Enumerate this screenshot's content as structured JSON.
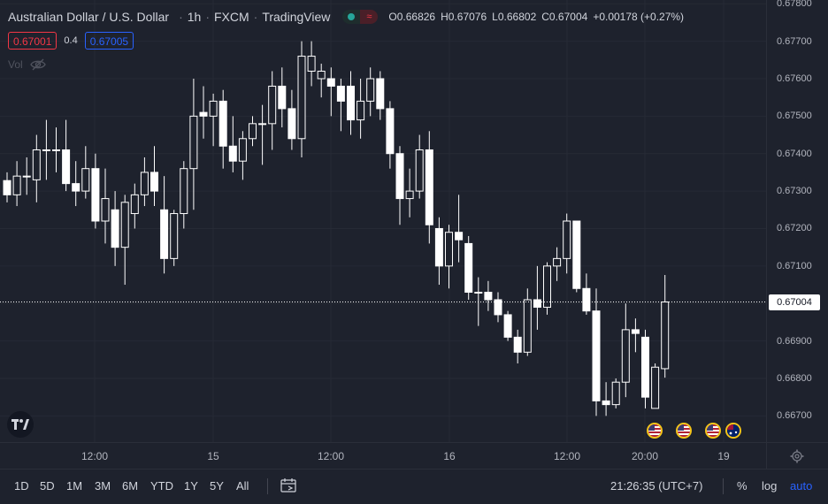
{
  "header": {
    "symbol": "Australian Dollar / U.S. Dollar",
    "interval": "1h",
    "exchange": "FXCM",
    "source": "TradingView",
    "ohlc": {
      "o_label": "O",
      "o": "0.66826",
      "h_label": "H",
      "h": "0.67076",
      "l_label": "L",
      "l": "0.66802",
      "c_label": "C",
      "c": "0.67004",
      "change": "+0.00178 (+0.27%)"
    },
    "status_icon": "market-status-icon"
  },
  "trade": {
    "sell": "0.67001",
    "spread": "0.4",
    "buy": "0.67005"
  },
  "volume": {
    "label": "Vol",
    "icon": "eye-hidden-icon"
  },
  "price_axis": {
    "ticks": [
      "0.67800",
      "0.67700",
      "0.67600",
      "0.67500",
      "0.67400",
      "0.67300",
      "0.67200",
      "0.67100",
      "0.67000",
      "0.66900",
      "0.66800",
      "0.66700"
    ],
    "last_price": "0.67004"
  },
  "time_axis": {
    "ticks": [
      "12:00",
      "15",
      "12:00",
      "16",
      "12:00",
      "20:00",
      "19"
    ]
  },
  "events": [
    "us-flag-icon",
    "us-flag-icon",
    "us-flag-icon",
    "au-flag-icon"
  ],
  "bottom_bar": {
    "ranges": [
      "1D",
      "5D",
      "1M",
      "3M",
      "6M",
      "YTD",
      "1Y",
      "5Y",
      "All"
    ],
    "clock": "21:26:35 (UTC+7)",
    "percent": "%",
    "log": "log",
    "auto": "auto"
  },
  "colors": {
    "background": "#1e222d",
    "candle": "#ffffff",
    "sell": "#f23645",
    "buy": "#2962ff",
    "status_green": "#26a69a"
  },
  "chart_data": {
    "type": "candlestick",
    "symbol": "AUDUSD",
    "interval": "1h",
    "ylim": [
      0.6663,
      0.6781
    ],
    "price_ticks": [
      0.678,
      0.677,
      0.676,
      0.675,
      0.674,
      0.673,
      0.672,
      0.671,
      0.67,
      0.669,
      0.668,
      0.667
    ],
    "last_price": 0.67004,
    "candles": [
      {
        "o": 0.67328,
        "h": 0.6735,
        "l": 0.6727,
        "c": 0.6729
      },
      {
        "o": 0.6729,
        "h": 0.6738,
        "l": 0.6726,
        "c": 0.6734
      },
      {
        "o": 0.6734,
        "h": 0.6739,
        "l": 0.6729,
        "c": 0.6734
      },
      {
        "o": 0.6733,
        "h": 0.6745,
        "l": 0.6727,
        "c": 0.6741
      },
      {
        "o": 0.6741,
        "h": 0.6749,
        "l": 0.6733,
        "c": 0.6741
      },
      {
        "o": 0.6741,
        "h": 0.6747,
        "l": 0.6735,
        "c": 0.6741
      },
      {
        "o": 0.6741,
        "h": 0.6749,
        "l": 0.673,
        "c": 0.6732
      },
      {
        "o": 0.6732,
        "h": 0.6738,
        "l": 0.6726,
        "c": 0.673
      },
      {
        "o": 0.673,
        "h": 0.6742,
        "l": 0.6728,
        "c": 0.6736
      },
      {
        "o": 0.6736,
        "h": 0.674,
        "l": 0.672,
        "c": 0.6722
      },
      {
        "o": 0.6722,
        "h": 0.6736,
        "l": 0.6716,
        "c": 0.6728
      },
      {
        "o": 0.6725,
        "h": 0.673,
        "l": 0.671,
        "c": 0.6715
      },
      {
        "o": 0.6715,
        "h": 0.6729,
        "l": 0.6705,
        "c": 0.6727
      },
      {
        "o": 0.6724,
        "h": 0.6732,
        "l": 0.672,
        "c": 0.6729
      },
      {
        "o": 0.6729,
        "h": 0.6739,
        "l": 0.6726,
        "c": 0.6735
      },
      {
        "o": 0.6735,
        "h": 0.6742,
        "l": 0.6726,
        "c": 0.673
      },
      {
        "o": 0.6725,
        "h": 0.6734,
        "l": 0.6708,
        "c": 0.6712
      },
      {
        "o": 0.6712,
        "h": 0.6725,
        "l": 0.671,
        "c": 0.6724
      },
      {
        "o": 0.6724,
        "h": 0.6738,
        "l": 0.672,
        "c": 0.6736
      },
      {
        "o": 0.6736,
        "h": 0.676,
        "l": 0.6725,
        "c": 0.675
      },
      {
        "o": 0.6751,
        "h": 0.6758,
        "l": 0.6744,
        "c": 0.675
      },
      {
        "o": 0.675,
        "h": 0.6756,
        "l": 0.6742,
        "c": 0.6754
      },
      {
        "o": 0.6754,
        "h": 0.6757,
        "l": 0.6736,
        "c": 0.6742
      },
      {
        "o": 0.6742,
        "h": 0.675,
        "l": 0.6735,
        "c": 0.6738
      },
      {
        "o": 0.6738,
        "h": 0.6746,
        "l": 0.6733,
        "c": 0.6744
      },
      {
        "o": 0.6744,
        "h": 0.675,
        "l": 0.6742,
        "c": 0.6748
      },
      {
        "o": 0.6748,
        "h": 0.6753,
        "l": 0.6737,
        "c": 0.6748
      },
      {
        "o": 0.6748,
        "h": 0.6762,
        "l": 0.6741,
        "c": 0.6758
      },
      {
        "o": 0.6758,
        "h": 0.6763,
        "l": 0.6747,
        "c": 0.6752
      },
      {
        "o": 0.6752,
        "h": 0.6757,
        "l": 0.6741,
        "c": 0.6744
      },
      {
        "o": 0.6744,
        "h": 0.677,
        "l": 0.6739,
        "c": 0.6766
      },
      {
        "o": 0.6762,
        "h": 0.677,
        "l": 0.6758,
        "c": 0.6766
      },
      {
        "o": 0.676,
        "h": 0.6764,
        "l": 0.6755,
        "c": 0.6762
      },
      {
        "o": 0.676,
        "h": 0.6763,
        "l": 0.675,
        "c": 0.6758
      },
      {
        "o": 0.6758,
        "h": 0.676,
        "l": 0.6746,
        "c": 0.6754
      },
      {
        "o": 0.6758,
        "h": 0.6762,
        "l": 0.6745,
        "c": 0.6749
      },
      {
        "o": 0.6749,
        "h": 0.676,
        "l": 0.6744,
        "c": 0.6754
      },
      {
        "o": 0.6754,
        "h": 0.6763,
        "l": 0.675,
        "c": 0.676
      },
      {
        "o": 0.676,
        "h": 0.6762,
        "l": 0.6749,
        "c": 0.6752
      },
      {
        "o": 0.6752,
        "h": 0.6754,
        "l": 0.6736,
        "c": 0.674
      },
      {
        "o": 0.674,
        "h": 0.6742,
        "l": 0.6721,
        "c": 0.6728
      },
      {
        "o": 0.6728,
        "h": 0.6736,
        "l": 0.6723,
        "c": 0.673
      },
      {
        "o": 0.673,
        "h": 0.6745,
        "l": 0.6728,
        "c": 0.6741
      },
      {
        "o": 0.6741,
        "h": 0.6746,
        "l": 0.6716,
        "c": 0.6721
      },
      {
        "o": 0.672,
        "h": 0.6723,
        "l": 0.6705,
        "c": 0.671
      },
      {
        "o": 0.671,
        "h": 0.6721,
        "l": 0.6704,
        "c": 0.6719
      },
      {
        "o": 0.6719,
        "h": 0.6729,
        "l": 0.6711,
        "c": 0.6717
      },
      {
        "o": 0.6716,
        "h": 0.6718,
        "l": 0.6701,
        "c": 0.6703
      },
      {
        "o": 0.6703,
        "h": 0.6707,
        "l": 0.6694,
        "c": 0.6703
      },
      {
        "o": 0.6703,
        "h": 0.6706,
        "l": 0.6698,
        "c": 0.6701
      },
      {
        "o": 0.6701,
        "h": 0.6703,
        "l": 0.6695,
        "c": 0.6697
      },
      {
        "o": 0.6697,
        "h": 0.6698,
        "l": 0.669,
        "c": 0.6691
      },
      {
        "o": 0.6691,
        "h": 0.6693,
        "l": 0.6684,
        "c": 0.6687
      },
      {
        "o": 0.6687,
        "h": 0.6704,
        "l": 0.6686,
        "c": 0.6701
      },
      {
        "o": 0.6701,
        "h": 0.671,
        "l": 0.6693,
        "c": 0.6699
      },
      {
        "o": 0.6699,
        "h": 0.6711,
        "l": 0.6697,
        "c": 0.671
      },
      {
        "o": 0.671,
        "h": 0.6715,
        "l": 0.6706,
        "c": 0.6712
      },
      {
        "o": 0.6712,
        "h": 0.6724,
        "l": 0.6708,
        "c": 0.6722
      },
      {
        "o": 0.6722,
        "h": 0.6722,
        "l": 0.6703,
        "c": 0.6704
      },
      {
        "o": 0.6704,
        "h": 0.6708,
        "l": 0.6697,
        "c": 0.6698
      },
      {
        "o": 0.6698,
        "h": 0.6704,
        "l": 0.667,
        "c": 0.6674
      },
      {
        "o": 0.6674,
        "h": 0.6679,
        "l": 0.667,
        "c": 0.6673
      },
      {
        "o": 0.6673,
        "h": 0.668,
        "l": 0.6672,
        "c": 0.6679
      },
      {
        "o": 0.6679,
        "h": 0.67,
        "l": 0.6675,
        "c": 0.6693
      },
      {
        "o": 0.6693,
        "h": 0.6696,
        "l": 0.6687,
        "c": 0.6692
      },
      {
        "o": 0.6691,
        "h": 0.6693,
        "l": 0.6672,
        "c": 0.6675
      },
      {
        "o": 0.6672,
        "h": 0.6684,
        "l": 0.6672,
        "c": 0.6683
      },
      {
        "o": 0.66826,
        "h": 0.67076,
        "l": 0.66802,
        "c": 0.67004
      }
    ]
  }
}
